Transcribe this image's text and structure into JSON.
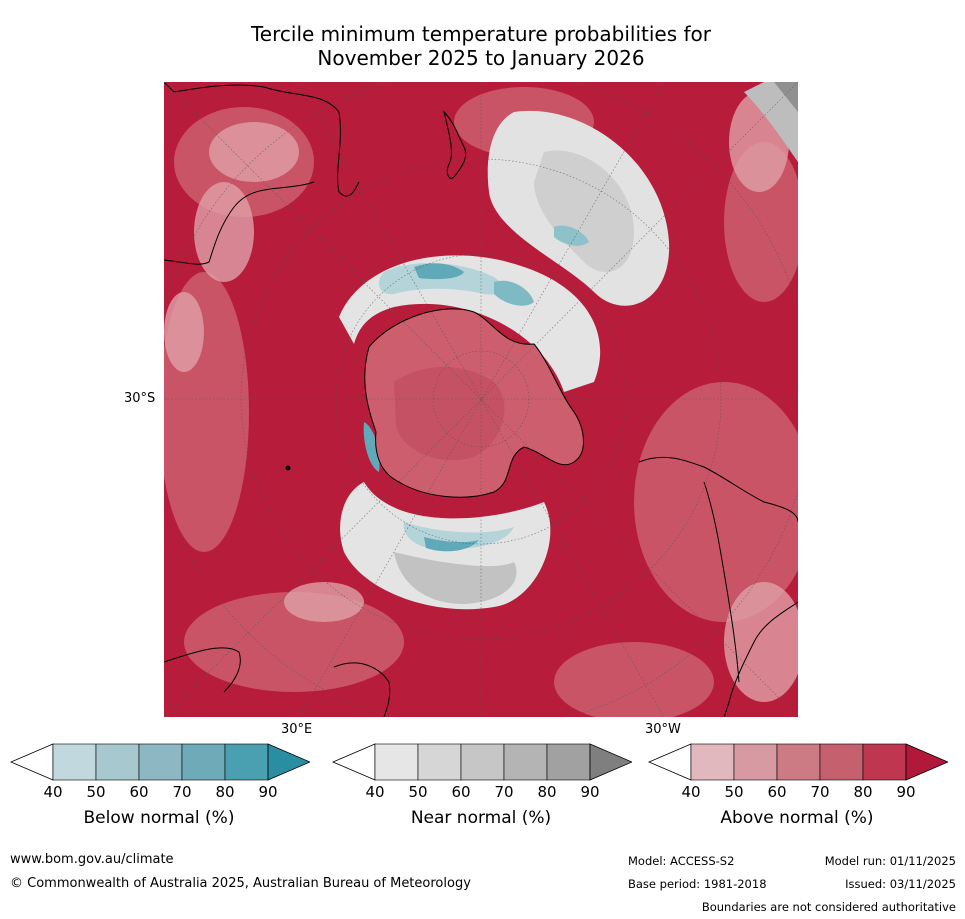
{
  "title": {
    "line1": "Tercile minimum temperature probabilities for",
    "line2": "November 2025 to January 2026"
  },
  "map": {
    "projection": "south-polar",
    "lat_label": "30°S",
    "lon_label_east": "30°E",
    "lon_label_west": "30°W",
    "colors": {
      "above_dark": "#b71c3b",
      "above_mid": "#cc5e6e",
      "above_light": "#e0a0a8",
      "near_light": "#e4e4e4",
      "near_mid": "#bdbdbd",
      "below_light": "#b5d4da",
      "below_mid": "#5fa9b8",
      "coast": "#000000"
    }
  },
  "colorbars": [
    {
      "name": "below",
      "label": "Below normal (%)",
      "ticks": [
        "40",
        "50",
        "60",
        "70",
        "80",
        "90"
      ],
      "colors": [
        "#ffffff",
        "#c1d9de",
        "#a7c8cf",
        "#8db7c2",
        "#6eaab7",
        "#4aa0b1",
        "#2a8ea3"
      ]
    },
    {
      "name": "near",
      "label": "Near normal (%)",
      "ticks": [
        "40",
        "50",
        "60",
        "70",
        "80",
        "90"
      ],
      "colors": [
        "#ffffff",
        "#e6e6e6",
        "#d6d6d6",
        "#c6c6c6",
        "#b4b4b4",
        "#a1a1a1",
        "#7f7f7f"
      ]
    },
    {
      "name": "above",
      "label": "Above normal (%)",
      "ticks": [
        "40",
        "50",
        "60",
        "70",
        "80",
        "90"
      ],
      "colors": [
        "#ffffff",
        "#e1b8bd",
        "#d89aa2",
        "#cc7a84",
        "#c5616e",
        "#bf3650",
        "#b1183a"
      ]
    }
  ],
  "footer": {
    "website": "www.bom.gov.au/climate",
    "copyright": "© Commonwealth of Australia 2025, Australian Bureau of Meteorology",
    "model": "Model: ACCESS-S2",
    "model_run": "Model run: 01/11/2025",
    "base_period": "Base period: 1981-2018",
    "issued": "Issued: 03/11/2025",
    "disclaimer": "Boundaries are not considered authoritative"
  }
}
